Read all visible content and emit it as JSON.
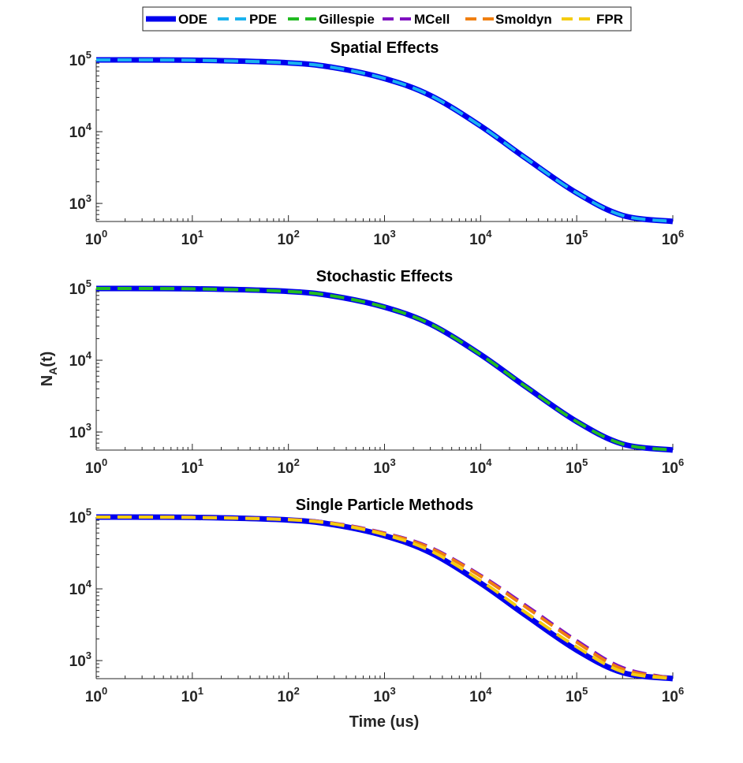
{
  "legend": {
    "placement": "top-center",
    "entries": [
      {
        "name": "ODE",
        "color": "#0000ee",
        "style": "solid"
      },
      {
        "name": "PDE",
        "color": "#1ab2ee",
        "style": "dashed"
      },
      {
        "name": "Gillespie",
        "color": "#22bb22",
        "style": "dashed"
      },
      {
        "name": "MCell",
        "color": "#7f10c0",
        "style": "dashed"
      },
      {
        "name": "Smoldyn",
        "color": "#f07f10",
        "style": "dashed"
      },
      {
        "name": "FPR",
        "color": "#f5cc10",
        "style": "dashed"
      }
    ]
  },
  "shared_ylabel": {
    "base": "N",
    "sub": "A",
    "suffix": "(t)"
  },
  "shared_xlabel": "Time (us)",
  "chart_data": [
    {
      "type": "line",
      "title": "Spatial Effects",
      "xscale": "log",
      "yscale": "log",
      "xlim": [
        1,
        1000000
      ],
      "ylim": [
        560,
        100000
      ],
      "xticks": [
        1,
        10,
        100,
        1000,
        10000,
        100000,
        1000000
      ],
      "yticks": [
        1000,
        10000,
        100000
      ],
      "grid": false,
      "series": [
        {
          "name": "ODE",
          "x": [
            1,
            10,
            100,
            300,
            1000,
            3000,
            10000,
            30000,
            100000,
            300000,
            1000000
          ],
          "y": [
            100000,
            99000,
            91000,
            78000,
            55000,
            32000,
            12000,
            4200,
            1400,
            680,
            560
          ]
        },
        {
          "name": "PDE",
          "x": [
            1,
            10,
            100,
            300,
            1000,
            3000,
            10000,
            30000,
            100000,
            300000,
            1000000
          ],
          "y": [
            100000,
            99000,
            91000,
            78000,
            55000,
            32000,
            12000,
            4200,
            1400,
            680,
            560
          ]
        }
      ]
    },
    {
      "type": "line",
      "title": "Stochastic Effects",
      "xscale": "log",
      "yscale": "log",
      "xlim": [
        1,
        1000000
      ],
      "ylim": [
        560,
        100000
      ],
      "xticks": [
        1,
        10,
        100,
        1000,
        10000,
        100000,
        1000000
      ],
      "yticks": [
        1000,
        10000,
        100000
      ],
      "grid": false,
      "series": [
        {
          "name": "ODE",
          "x": [
            1,
            10,
            100,
            300,
            1000,
            3000,
            10000,
            30000,
            100000,
            300000,
            1000000
          ],
          "y": [
            100000,
            99000,
            91000,
            78000,
            55000,
            32000,
            12000,
            4200,
            1400,
            680,
            560
          ]
        },
        {
          "name": "Gillespie",
          "x": [
            1,
            10,
            100,
            300,
            1000,
            3000,
            10000,
            30000,
            100000,
            300000,
            1000000
          ],
          "y": [
            100000,
            99000,
            91000,
            78000,
            55000,
            32000,
            12000,
            4200,
            1400,
            680,
            560
          ]
        }
      ]
    },
    {
      "type": "line",
      "title": "Single Particle Methods",
      "xscale": "log",
      "yscale": "log",
      "xlim": [
        1,
        1000000
      ],
      "ylim": [
        560,
        100000
      ],
      "xticks": [
        1,
        10,
        100,
        1000,
        10000,
        100000,
        1000000
      ],
      "yticks": [
        1000,
        10000,
        100000
      ],
      "grid": false,
      "series": [
        {
          "name": "ODE",
          "x": [
            1,
            10,
            100,
            300,
            1000,
            3000,
            10000,
            30000,
            100000,
            300000,
            1000000
          ],
          "y": [
            100000,
            99000,
            91000,
            78000,
            55000,
            32000,
            12000,
            4200,
            1400,
            680,
            560
          ]
        },
        {
          "name": "MCell",
          "x": [
            1,
            10,
            100,
            300,
            1000,
            3000,
            10000,
            30000,
            100000,
            300000,
            1000000
          ],
          "y": [
            100000,
            99200,
            93000,
            82000,
            60000,
            38000,
            15500,
            5800,
            1900,
            800,
            565
          ]
        },
        {
          "name": "Smoldyn",
          "x": [
            1,
            10,
            100,
            300,
            1000,
            3000,
            10000,
            30000,
            100000,
            300000,
            1000000
          ],
          "y": [
            100000,
            99100,
            92500,
            81000,
            59000,
            37000,
            15000,
            5500,
            1800,
            760,
            565
          ]
        },
        {
          "name": "FPR",
          "x": [
            1,
            10,
            100,
            300,
            1000,
            3000,
            10000,
            30000,
            100000,
            300000,
            1000000
          ],
          "y": [
            100000,
            99100,
            92000,
            80000,
            57000,
            34000,
            13000,
            4600,
            1550,
            700,
            560
          ]
        }
      ]
    }
  ]
}
